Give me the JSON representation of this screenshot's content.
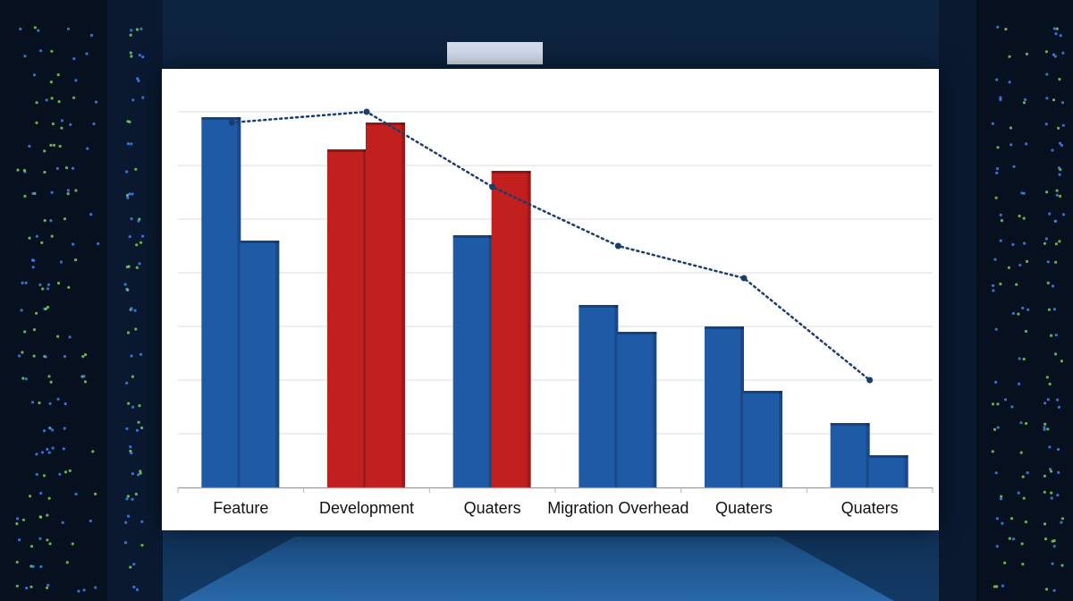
{
  "colors": {
    "backdrop": "#0b1a2e",
    "blue_bar": "#1f5aa6",
    "red_bar": "#c21f1f",
    "trend_line": "#1b3d6e",
    "gridline": "#dcdcdc",
    "server_led_green": "#7ed957",
    "server_led_blue": "#3d8bff"
  },
  "chart_data": {
    "type": "bar",
    "title": "",
    "xlabel": "",
    "ylabel": "",
    "ylim": [
      0,
      7
    ],
    "grid": true,
    "legend": "none",
    "categories": [
      "Feature",
      "Development",
      "Quaters",
      "Migration Overhead",
      "Quaters",
      "Quaters"
    ],
    "series": [
      {
        "values": [
          6.9,
          6.3,
          4.7,
          3.4,
          3.0,
          1.2
        ]
      },
      {
        "values": [
          4.6,
          6.8,
          5.9,
          2.9,
          1.8,
          0.6
        ]
      }
    ],
    "bar_colors": [
      [
        "blue",
        "blue"
      ],
      [
        "red",
        "red"
      ],
      [
        "blue",
        "red"
      ],
      [
        "blue",
        "blue"
      ],
      [
        "blue",
        "blue"
      ],
      [
        "blue",
        "blue"
      ]
    ],
    "trend_line": {
      "style": "dotted",
      "values": [
        6.8,
        7.0,
        5.6,
        4.5,
        3.9,
        2.0
      ]
    }
  }
}
